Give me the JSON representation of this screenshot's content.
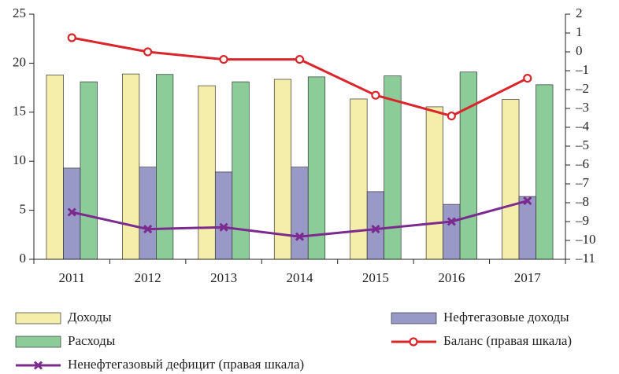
{
  "chart_data": {
    "type": "bar",
    "categories": [
      "2011",
      "2012",
      "2013",
      "2014",
      "2015",
      "2016",
      "2017"
    ],
    "series": [
      {
        "name": "Доходы",
        "type": "bar",
        "color": "#f5eeaa",
        "values": [
          18.8,
          18.9,
          17.7,
          18.35,
          16.35,
          15.55,
          16.3
        ]
      },
      {
        "name": "Нефтегазовые доходы",
        "type": "bar",
        "color": "#9999c8",
        "values": [
          9.3,
          9.4,
          8.9,
          9.4,
          6.9,
          5.6,
          6.4
        ]
      },
      {
        "name": "Расходы",
        "type": "bar",
        "color": "#8ccc99",
        "values": [
          18.1,
          18.85,
          18.1,
          18.6,
          18.7,
          19.1,
          17.8
        ]
      },
      {
        "name": "Баланс (правая шкала)",
        "type": "line",
        "marker": "circle",
        "axis": "y2",
        "color": "#d9262b",
        "values": [
          0.75,
          0,
          -0.4,
          -0.4,
          -2.3,
          -3.4,
          -1.4
        ]
      },
      {
        "name": "Ненефтегазовый дефицит (правая шкала)",
        "type": "line",
        "marker": "x",
        "axis": "y2",
        "color": "#7b2a8e",
        "values": [
          -8.5,
          -9.4,
          -9.3,
          -9.8,
          -9.4,
          -9.0,
          -7.9
        ]
      }
    ],
    "ylim": [
      0,
      25
    ],
    "yticks": [
      0,
      5,
      10,
      15,
      20,
      25
    ],
    "y2lim": [
      -11,
      2
    ],
    "y2ticks": [
      2,
      1,
      0,
      {
        "value": -1,
        "label": "–1"
      },
      {
        "value": -2,
        "label": "–2"
      },
      {
        "value": -3,
        "label": "–3"
      },
      {
        "value": -4,
        "label": "–4"
      },
      {
        "value": -5,
        "label": "–5"
      },
      {
        "value": -6,
        "label": "–6"
      },
      {
        "value": -7,
        "label": "–7"
      },
      {
        "value": -8,
        "label": "–8"
      },
      {
        "value": -9,
        "label": "–9"
      },
      {
        "value": -10,
        "label": "–10"
      },
      {
        "value": -11,
        "label": "–11"
      }
    ],
    "grid": false,
    "legend": "bottom"
  }
}
